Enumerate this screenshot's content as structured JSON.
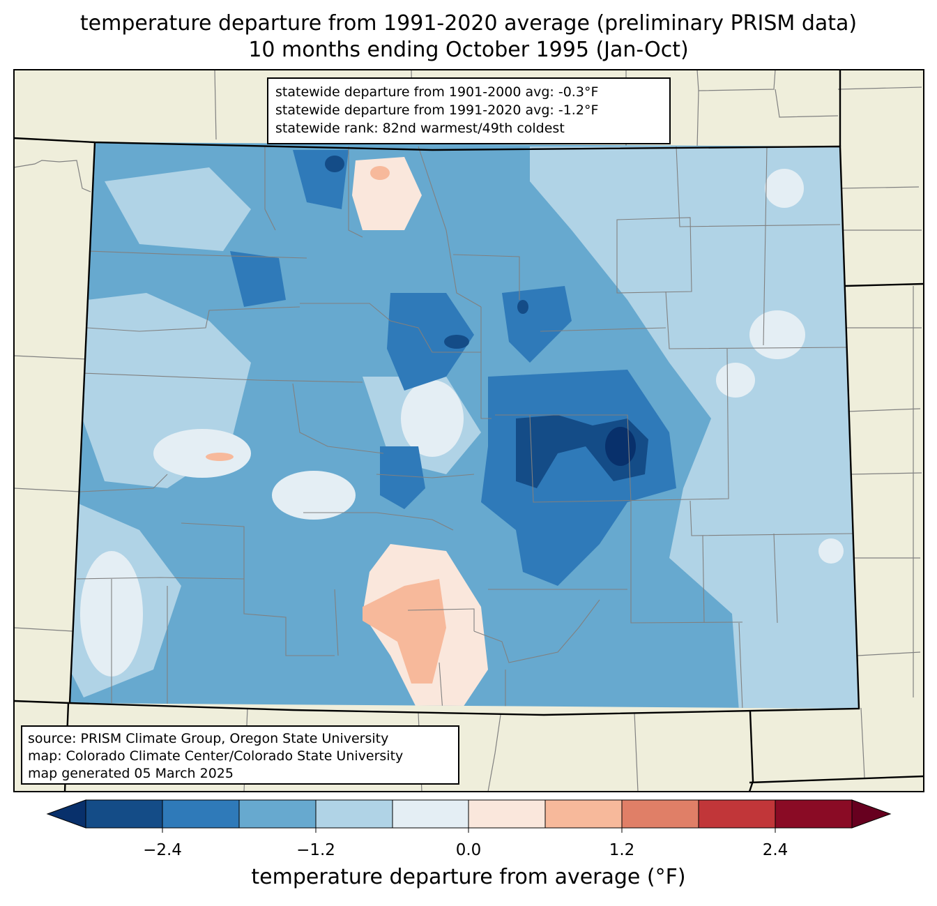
{
  "title": {
    "line1": "temperature departure from 1991-2020 average (preliminary PRISM data)",
    "line2": "10 months ending October 1995 (Jan-Oct)"
  },
  "stats": {
    "line1": "statewide departure from 1901-2000 avg: -0.3°F",
    "line2": "statewide departure from 1991-2020 avg: -1.2°F",
    "line3": "statewide rank: 82nd warmest/49th coldest"
  },
  "source": {
    "line1": "source: PRISM Climate Group, Oregon State University",
    "line2": "map: Colorado Climate Center/Colorado State University",
    "line3": "map generated 05 March 2025"
  },
  "colorbar": {
    "label": "temperature departure from average (°F)",
    "ticks": [
      "−2.4",
      "−1.2",
      "0.0",
      "1.2",
      "2.4"
    ],
    "colors": [
      "#08306b",
      "#144c87",
      "#2f7ab9",
      "#67a9cf",
      "#b0d3e6",
      "#e4eef4",
      "#fae7dc",
      "#f7b99b",
      "#e07f67",
      "#c13639",
      "#8a0b25",
      "#67001f"
    ]
  },
  "colors": {
    "land": "#efeedb",
    "state_border": "#000000",
    "county_border": "#808080"
  }
}
